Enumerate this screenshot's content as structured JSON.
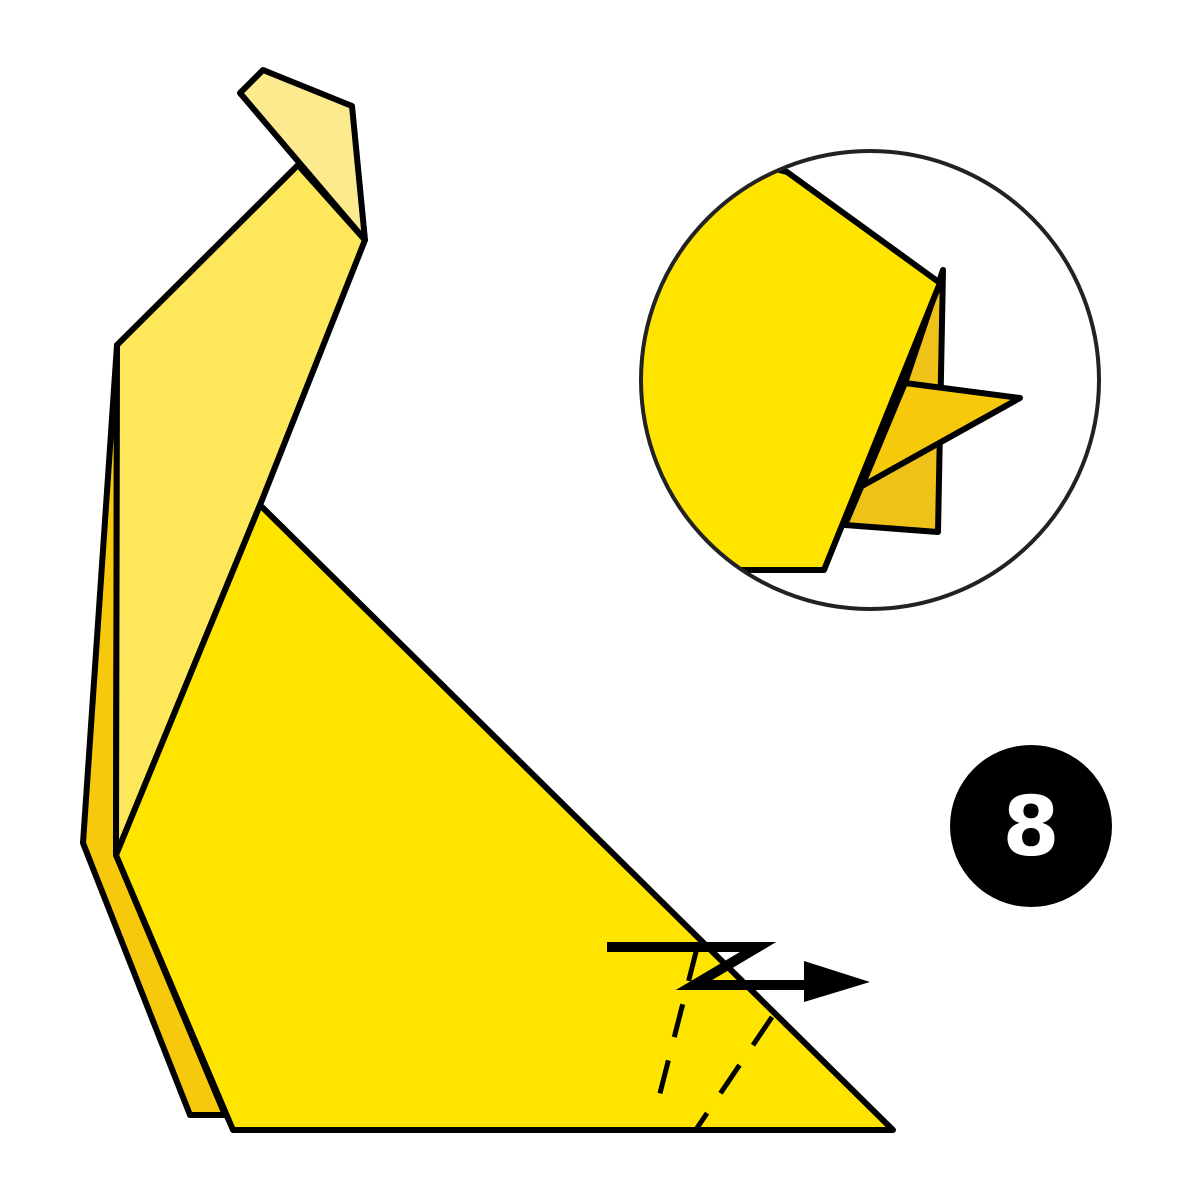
{
  "step": {
    "number": "8"
  },
  "palette": {
    "paper_front": "#FFE400",
    "paper_back": "#FFE75C",
    "paper_flap": "#FCEA8E",
    "paper_edge": "#F7C90C",
    "paper_shadow": "#EFC21A",
    "outline": "#000000",
    "badge": "#000000",
    "background": "#FFFFFF"
  },
  "icons": {
    "fold_arrow": "pleat-fold-arrow-right",
    "detail_view": "magnifier-circle"
  }
}
